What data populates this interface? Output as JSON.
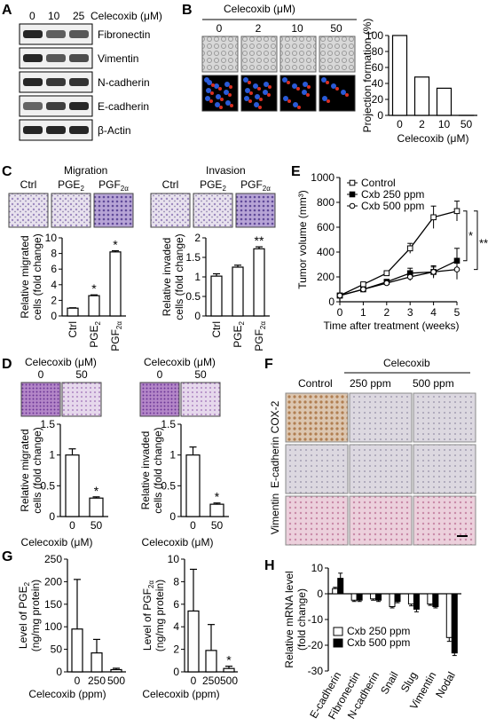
{
  "panels": {
    "A": {
      "letter": "A",
      "dose_labels": [
        "0",
        "10",
        "25"
      ],
      "dose_unit": "Celecoxib (μM)",
      "blots": [
        "Fibronectin",
        "Vimentin",
        "N-cadherin",
        "E-cadherin",
        "β-Actin"
      ]
    },
    "B": {
      "letter": "B",
      "heading": "Celecoxib (μM)",
      "doses": [
        "0",
        "2",
        "10",
        "50"
      ]
    },
    "C": {
      "letter": "C",
      "migration_title": "Migration",
      "invasion_title": "Invasion",
      "image_labels": [
        "Ctrl",
        "PGE",
        "PGF"
      ],
      "image_subs": [
        "",
        "2",
        "2α"
      ]
    },
    "D": {
      "letter": "D",
      "heading": "Celecoxib (μM)",
      "doses": [
        "0",
        "50"
      ]
    },
    "E": {
      "letter": "E"
    },
    "F": {
      "letter": "F",
      "heading": "Celecoxib",
      "columns": [
        "Control",
        "250 ppm",
        "500 ppm"
      ],
      "row_labels": [
        "Vimentin",
        "E-cadherin",
        "COX-2"
      ]
    },
    "G": {
      "letter": "G"
    },
    "H": {
      "letter": "H"
    }
  },
  "colors": {
    "bar_black": "#000000",
    "bar_white": "#ffffff",
    "blot_band": "#1a1a1a",
    "fluor_red": "#d83020",
    "fluor_blue": "#2a5bd8",
    "crystal_violet": "#6a4fa0",
    "ihc_brown": "#a56b3a",
    "ihc_pink": "#c98aa8"
  },
  "chart_data": [
    {
      "id": "B-projection",
      "type": "bar",
      "categories": [
        "0",
        "2",
        "10",
        "50"
      ],
      "values": [
        100,
        48,
        34,
        0
      ],
      "xlabel": "Celecoxib (μM)",
      "ylabel": "Projection formation (%)",
      "ylim": [
        0,
        100
      ],
      "yticks": [
        0,
        20,
        40,
        60,
        80,
        100
      ]
    },
    {
      "id": "C-migration",
      "type": "bar",
      "categories": [
        "Ctrl",
        "PGE2",
        "PGF2α"
      ],
      "values": [
        1.0,
        2.6,
        8.2
      ],
      "errors": [
        0.05,
        0.1,
        0.15
      ],
      "significance": [
        "",
        "*",
        "*"
      ],
      "ylabel": "Relative migrated cells (fold change)",
      "ylim": [
        0,
        10
      ],
      "yticks": [
        0,
        2,
        4,
        6,
        8,
        10
      ]
    },
    {
      "id": "C-invasion",
      "type": "bar",
      "categories": [
        "Ctrl",
        "PGE2",
        "PGF2α"
      ],
      "values": [
        1.02,
        1.25,
        1.72
      ],
      "errors": [
        0.06,
        0.05,
        0.05
      ],
      "significance": [
        "",
        "",
        "**"
      ],
      "ylabel": "Relative invaded cells (fold change)",
      "ylim": [
        0,
        2.0
      ],
      "yticks": [
        0,
        0.5,
        1.0,
        1.5,
        2.0
      ]
    },
    {
      "id": "D-migration",
      "type": "bar",
      "categories": [
        "0",
        "50"
      ],
      "values": [
        1.0,
        0.3
      ],
      "errors": [
        0.1,
        0.02
      ],
      "significance": [
        "",
        "*"
      ],
      "xlabel": "Celecoxib (μM)",
      "ylabel": "Relative migrated cells (fold change)",
      "ylim": [
        0,
        1.5
      ],
      "yticks": [
        0,
        0.5,
        1.0,
        1.5
      ]
    },
    {
      "id": "D-invasion",
      "type": "bar",
      "categories": [
        "0",
        "50"
      ],
      "values": [
        1.0,
        0.2
      ],
      "errors": [
        0.13,
        0.02
      ],
      "significance": [
        "",
        "*"
      ],
      "xlabel": "Celecoxib (μM)",
      "ylabel": "Relative invaded cells (fold change)",
      "ylim": [
        0,
        1.5
      ],
      "yticks": [
        0,
        0.5,
        1.0,
        1.5
      ]
    },
    {
      "id": "E-tumor",
      "type": "line",
      "x": [
        0,
        1,
        2,
        3,
        4,
        5
      ],
      "series": [
        {
          "name": "Control",
          "values": [
            50,
            140,
            230,
            430,
            680,
            730
          ],
          "errors": [
            10,
            15,
            20,
            40,
            90,
            80
          ],
          "marker": "open-square"
        },
        {
          "name": "Cxb 250 ppm",
          "values": [
            50,
            100,
            160,
            230,
            240,
            330
          ],
          "errors": [
            10,
            15,
            20,
            40,
            50,
            100
          ],
          "marker": "filled-square"
        },
        {
          "name": "Cxb 500 ppm",
          "values": [
            50,
            100,
            150,
            200,
            240,
            260
          ],
          "errors": [
            10,
            15,
            20,
            30,
            40,
            80
          ],
          "marker": "open-circle"
        }
      ],
      "significance": [
        "*",
        "**"
      ],
      "xlabel": "Time after treatment (weeks)",
      "ylabel": "Tumor volume (mm³)",
      "xlim": [
        0,
        5
      ],
      "ylim": [
        0,
        1000
      ],
      "xticks": [
        0,
        1,
        2,
        3,
        4,
        5
      ],
      "yticks": [
        0,
        200,
        400,
        600,
        800,
        1000
      ],
      "legend": "top-left"
    },
    {
      "id": "G-PGE2",
      "type": "bar",
      "categories": [
        "0",
        "250",
        "500"
      ],
      "values": [
        95,
        42,
        5
      ],
      "errors": [
        110,
        30,
        3
      ],
      "significance": [
        "",
        "",
        ""
      ],
      "xlabel": "Celecoxib (ppm)",
      "ylabel": "Level of PGE2 (ng/mg protein)",
      "ylim": [
        0,
        250
      ],
      "yticks": [
        0,
        50,
        100,
        150,
        200,
        250
      ]
    },
    {
      "id": "G-PGF2a",
      "type": "bar",
      "categories": [
        "0",
        "250",
        "500"
      ],
      "values": [
        5.4,
        1.9,
        0.3
      ],
      "errors": [
        3.7,
        2.3,
        0.2
      ],
      "significance": [
        "",
        "",
        "*"
      ],
      "xlabel": "Celecoxib (ppm)",
      "ylabel": "Level of PGF2α (ng/mg protein)",
      "ylim": [
        0,
        10
      ],
      "yticks": [
        0,
        2,
        4,
        6,
        8,
        10
      ]
    },
    {
      "id": "H-mrna",
      "type": "bar",
      "categories": [
        "E-cadherin",
        "Fibronectin",
        "N-cadherin",
        "Snail",
        "Slug",
        "Vimentin",
        "Nodal"
      ],
      "series": [
        {
          "name": "Cxb 250 ppm",
          "values": [
            2.0,
            -2.5,
            -2.0,
            -5.0,
            -4.0,
            -4.0,
            -17.0
          ],
          "errors": [
            0.5,
            0.5,
            0.5,
            0.5,
            0.7,
            0.5,
            1.5
          ]
        },
        {
          "name": "Cxb 500 ppm",
          "values": [
            6.0,
            -2.5,
            -2.5,
            -3.0,
            -6.0,
            -5.0,
            -23.0
          ],
          "errors": [
            2.0,
            0.5,
            0.5,
            0.5,
            1.0,
            0.5,
            1.0
          ]
        }
      ],
      "ylabel": "Relative mRNA level (fold change)",
      "ylim": [
        -30,
        10
      ],
      "yticks": [
        -30,
        -20,
        -10,
        0,
        10
      ],
      "legend": "lower-left"
    }
  ]
}
